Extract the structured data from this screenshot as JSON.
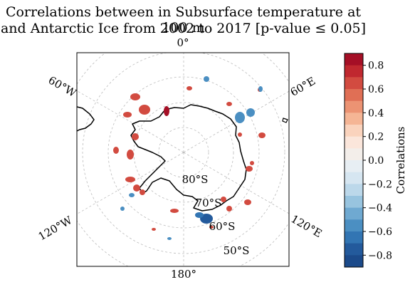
{
  "title_line1": "Correlations between in Subsurface temperature at 100 m",
  "title_line2": "and Antarctic Ice from 2002 to 2017 [p-value ≤ 0.05]",
  "longitude_labels": {
    "top": "0°",
    "bottom": "180°",
    "upper_left": "60°W",
    "upper_right": "60°E",
    "lower_left": "120°W",
    "lower_right": "120°E"
  },
  "latitude_labels": [
    "80°S",
    "70°S",
    "60°S",
    "50°S"
  ],
  "colorbar": {
    "label": "Correlations",
    "min": -0.9,
    "max": 0.9,
    "ticks": [
      "0.8",
      "0.6",
      "0.4",
      "0.2",
      "0.0",
      "−0.2",
      "−0.4",
      "−0.6",
      "−0.8"
    ],
    "colors": [
      "#a50f26",
      "#c0282f",
      "#d24b40",
      "#e06f55",
      "#ec9373",
      "#f5b595",
      "#fad3bd",
      "#fbe6db",
      "#f3eeea",
      "#e7eef3",
      "#d6e6f1",
      "#bcd8ea",
      "#98c4df",
      "#6fa9d1",
      "#4b8fc2",
      "#3275b3",
      "#235a9c",
      "#1b4a8a"
    ]
  },
  "colors": {
    "positive": "#d24b40",
    "negative": "#4b8fc2",
    "coastline": "#000000",
    "gridline": "#bbbbbb"
  }
}
